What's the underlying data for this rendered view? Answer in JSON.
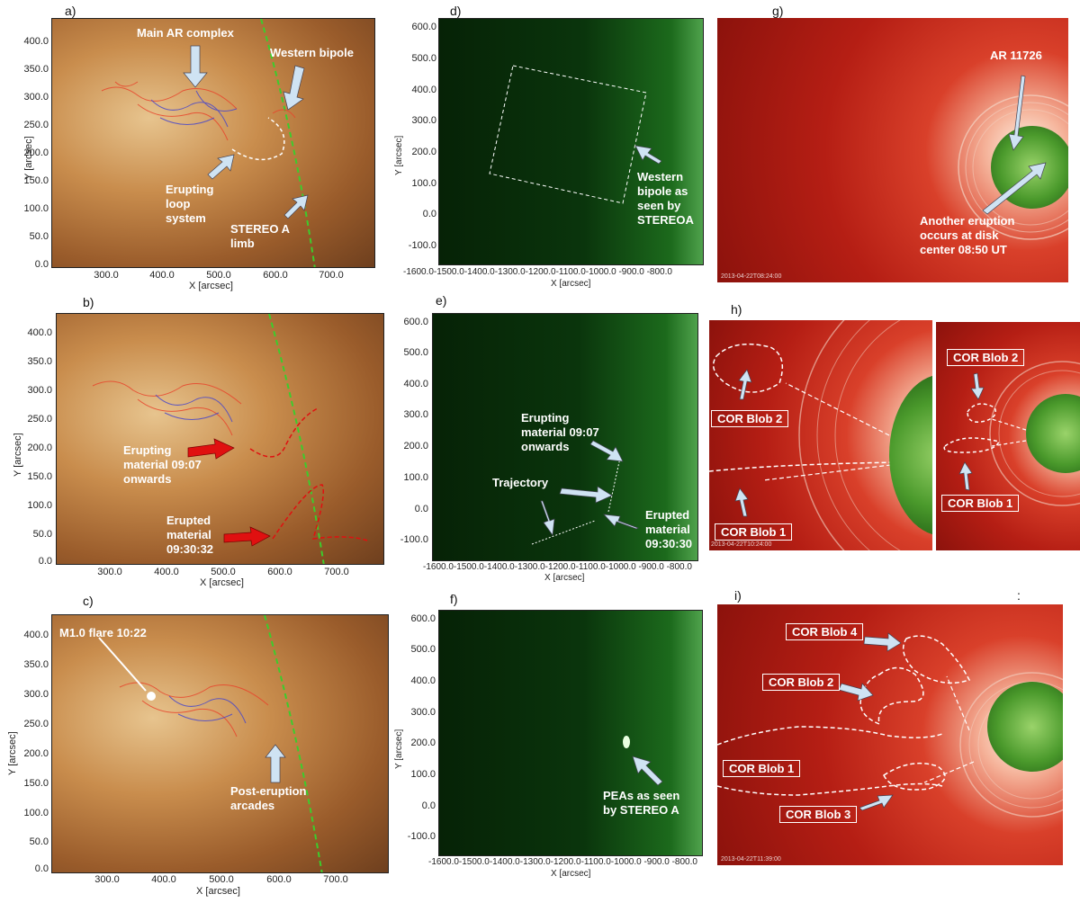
{
  "panels": {
    "a": {
      "letter": "a)",
      "annotations": {
        "main_ar": "Main AR complex",
        "western_bipole": "Western bipole",
        "erupting_loop": "Erupting\nloop\nsystem",
        "stereo_limb": "STEREO A\nlimb"
      },
      "xlabel": "X [arcsec]",
      "ylabel": "Y [arcsec]",
      "xticks": [
        "300.0",
        "400.0",
        "500.0",
        "600.0",
        "700.0"
      ],
      "yticks": [
        "400.0",
        "350.0",
        "300.0",
        "250.0",
        "200.0",
        "150.0",
        "100.0",
        "50.0",
        "0.0"
      ]
    },
    "b": {
      "letter": "b)",
      "annotations": {
        "erupting": "Erupting\nmaterial 09:07\nonwards",
        "erupted": "Erupted\nmaterial\n09:30:32"
      },
      "xlabel": "X [arcsec]",
      "ylabel": "Y [arcsec]",
      "xticks": [
        "300.0",
        "400.0",
        "500.0",
        "600.0",
        "700.0"
      ],
      "yticks": [
        "400.0",
        "350.0",
        "300.0",
        "250.0",
        "200.0",
        "150.0",
        "100.0",
        "50.0",
        "0.0"
      ]
    },
    "c": {
      "letter": "c)",
      "annotations": {
        "flare": "M1.0 flare 10:22",
        "pea": "Post-eruption\narcades"
      },
      "xlabel": "X [arcsec]",
      "ylabel": "Y [arcsec]",
      "xticks": [
        "300.0",
        "400.0",
        "500.0",
        "600.0",
        "700.0"
      ],
      "yticks": [
        "400.0",
        "350.0",
        "300.0",
        "250.0",
        "200.0",
        "150.0",
        "100.0",
        "50.0",
        "0.0"
      ]
    },
    "d": {
      "letter": "d)",
      "annotations": {
        "bipole": "Western\nbipole as\nseen by\nSTEREOA"
      },
      "xlabel": "X [arcsec]",
      "ylabel": "Y [arcsec]",
      "xticks": "-1600.0-1500.0-1400.0-1300.0-1200.0-1100.0-1000.0 -900.0 -800.0",
      "yticks": [
        "600.0",
        "500.0",
        "400.0",
        "300.0",
        "200.0",
        "100.0",
        "0.0",
        "-100.0"
      ]
    },
    "e": {
      "letter": "e)",
      "annotations": {
        "erupting": "Erupting\nmaterial 09:07\nonwards",
        "trajectory": "Trajectory",
        "erupted": "Erupted\nmaterial\n09:30:30"
      },
      "xlabel": "X [arcsec]",
      "ylabel": "Y [arcsec]",
      "xticks": "-1600.0-1500.0-1400.0-1300.0-1200.0-1100.0-1000.0 -900.0 -800.0",
      "yticks": [
        "600.0",
        "500.0",
        "400.0",
        "300.0",
        "200.0",
        "100.0",
        "0.0",
        "-100.0"
      ]
    },
    "f": {
      "letter": "f)",
      "annotations": {
        "pea": "PEAs as seen\nby STEREO A"
      },
      "xlabel": "X [arcsec]",
      "ylabel": "Y [arcsec]",
      "xticks": "-1600.0-1500.0-1400.0-1300.0-1200.0-1100.0-1000.0 -900.0 -800.0",
      "yticks": [
        "600.0",
        "500.0",
        "400.0",
        "300.0",
        "200.0",
        "100.0",
        "0.0",
        "-100.0"
      ]
    },
    "g": {
      "letter": "g)",
      "annotations": {
        "ar": "AR 11726",
        "other": "Another eruption\noccurs at disk\ncenter 08:50 UT"
      },
      "timestamp": "2013-04-22T08:24:00"
    },
    "h": {
      "letter": "h)",
      "annotations": {
        "blob2a": "COR Blob 2",
        "blob1a": "COR Blob 1",
        "blob2b": "COR Blob 2",
        "blob1b": "COR Blob 1"
      },
      "timestamp": "2013-04-22T10:24:00"
    },
    "i": {
      "letter": "i)",
      "colon": ":",
      "annotations": {
        "blob4": "COR Blob 4",
        "blob2": "COR Blob 2",
        "blob1": "COR Blob 1",
        "blob3": "COR Blob 3"
      },
      "timestamp": "2013-04-22T11:39:00"
    }
  },
  "colors": {
    "green_limb": "#3ccc2c",
    "red_contour": "#e8452c",
    "blue_contour": "#4a48c8",
    "arrow_fill": "#cfe3f3",
    "red_arrow": "#e01010"
  }
}
